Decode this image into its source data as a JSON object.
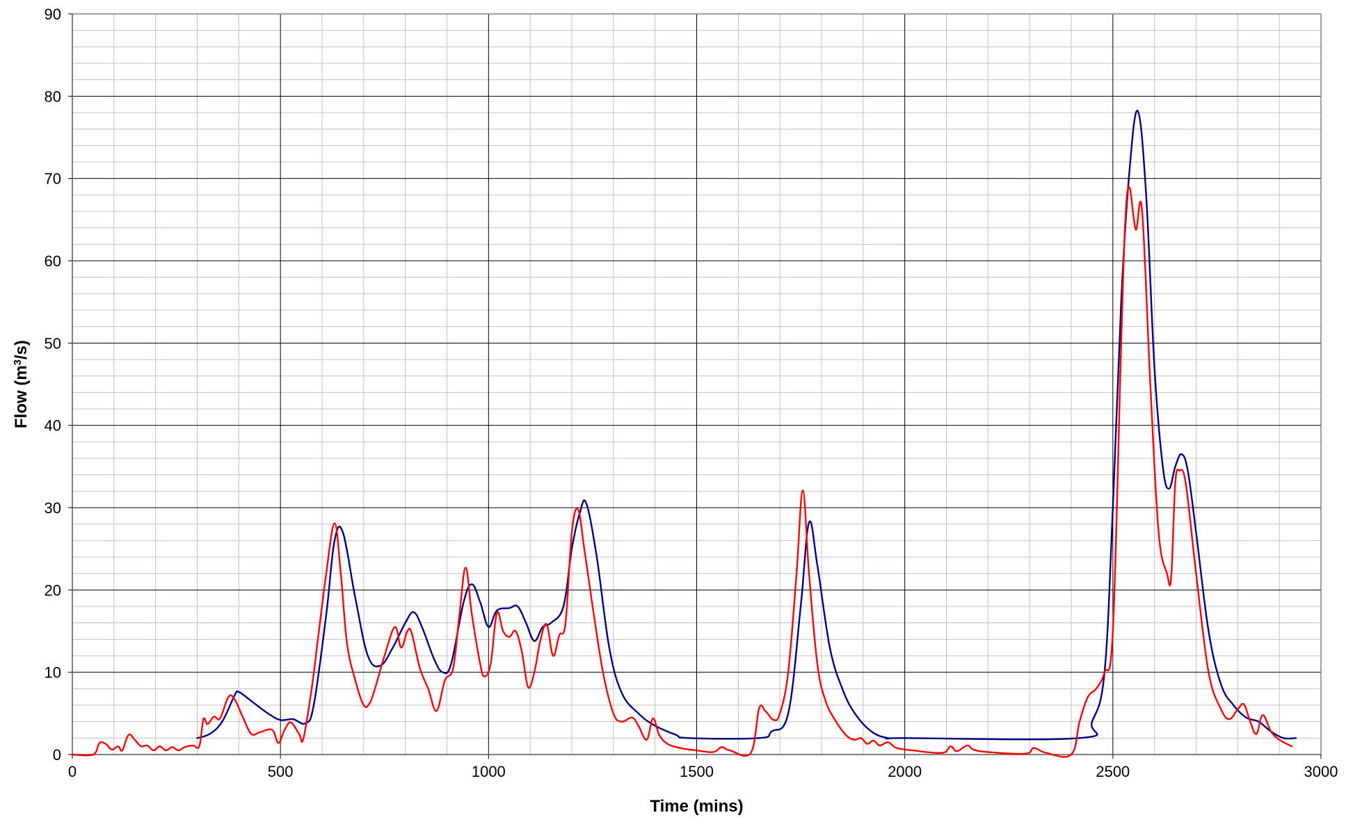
{
  "chart_data": {
    "type": "line",
    "title": "",
    "xlabel": "Time (mins)",
    "ylabel_main": "Flow (m",
    "ylabel_sup": "3",
    "ylabel_end": "/s)",
    "xlim": [
      0,
      3000
    ],
    "ylim": [
      0,
      90
    ],
    "x_major_step": 500,
    "x_minor_step": 100,
    "y_major_step": 10,
    "y_minor_step": 2,
    "grid": true,
    "x_ticks": [
      "0",
      "500",
      "1000",
      "1500",
      "2000",
      "2500",
      "3000"
    ],
    "y_ticks": [
      "0",
      "10",
      "20",
      "30",
      "40",
      "50",
      "60",
      "70",
      "80",
      "90"
    ],
    "colors": {
      "grid_major": "#000000",
      "grid_minor": "#c0c0c0",
      "series_red": "#ff0000",
      "series_blue": "#000080"
    },
    "series": [
      {
        "color": "#000080",
        "points": [
          [
            300,
            2
          ],
          [
            330,
            2.5
          ],
          [
            360,
            4
          ],
          [
            390,
            7.2
          ],
          [
            400,
            7.6
          ],
          [
            430,
            6.5
          ],
          [
            470,
            5
          ],
          [
            500,
            4.2
          ],
          [
            530,
            4.3
          ],
          [
            560,
            3.8
          ],
          [
            580,
            6
          ],
          [
            610,
            17
          ],
          [
            630,
            26
          ],
          [
            650,
            27
          ],
          [
            680,
            19
          ],
          [
            710,
            12
          ],
          [
            740,
            10.8
          ],
          [
            770,
            13
          ],
          [
            800,
            16
          ],
          [
            820,
            17.3
          ],
          [
            840,
            15.5
          ],
          [
            870,
            11.5
          ],
          [
            890,
            10
          ],
          [
            910,
            11
          ],
          [
            940,
            18.5
          ],
          [
            960,
            20.7
          ],
          [
            980,
            18.5
          ],
          [
            1000,
            15.5
          ],
          [
            1020,
            17.5
          ],
          [
            1050,
            17.8
          ],
          [
            1070,
            18
          ],
          [
            1090,
            16
          ],
          [
            1110,
            13.8
          ],
          [
            1130,
            15.5
          ],
          [
            1150,
            16
          ],
          [
            1180,
            18
          ],
          [
            1200,
            25
          ],
          [
            1220,
            29.5
          ],
          [
            1235,
            30.5
          ],
          [
            1260,
            24
          ],
          [
            1290,
            13
          ],
          [
            1320,
            7.5
          ],
          [
            1360,
            5
          ],
          [
            1400,
            3.5
          ],
          [
            1450,
            2.4
          ],
          [
            1480,
            2
          ],
          [
            1650,
            2
          ],
          [
            1680,
            2.8
          ],
          [
            1720,
            5
          ],
          [
            1750,
            18
          ],
          [
            1770,
            28.2
          ],
          [
            1790,
            23
          ],
          [
            1820,
            13
          ],
          [
            1850,
            8
          ],
          [
            1880,
            5
          ],
          [
            1920,
            2.8
          ],
          [
            1960,
            2
          ],
          [
            2000,
            2
          ],
          [
            2420,
            2
          ],
          [
            2450,
            4
          ],
          [
            2480,
            10
          ],
          [
            2500,
            30
          ],
          [
            2520,
            55
          ],
          [
            2540,
            71
          ],
          [
            2560,
            78.2
          ],
          [
            2580,
            68
          ],
          [
            2600,
            47
          ],
          [
            2620,
            35
          ],
          [
            2635,
            32.3
          ],
          [
            2650,
            35
          ],
          [
            2665,
            36.5
          ],
          [
            2680,
            34.5
          ],
          [
            2700,
            27
          ],
          [
            2730,
            15
          ],
          [
            2760,
            8.5
          ],
          [
            2790,
            6
          ],
          [
            2820,
            4.5
          ],
          [
            2850,
            4
          ],
          [
            2880,
            2.8
          ],
          [
            2910,
            2
          ],
          [
            2940,
            2
          ]
        ]
      },
      {
        "color": "#ff0000",
        "points": [
          [
            0,
            0
          ],
          [
            50,
            0
          ],
          [
            65,
            1.4
          ],
          [
            80,
            1.3
          ],
          [
            95,
            0.6
          ],
          [
            110,
            1
          ],
          [
            120,
            0.5
          ],
          [
            135,
            2.4
          ],
          [
            150,
            1.8
          ],
          [
            165,
            1
          ],
          [
            180,
            1.1
          ],
          [
            195,
            0.5
          ],
          [
            210,
            1
          ],
          [
            225,
            0.5
          ],
          [
            240,
            0.9
          ],
          [
            255,
            0.5
          ],
          [
            270,
            0.9
          ],
          [
            290,
            1.1
          ],
          [
            305,
            1
          ],
          [
            315,
            4.3
          ],
          [
            325,
            3.7
          ],
          [
            340,
            4.6
          ],
          [
            355,
            4.4
          ],
          [
            375,
            7
          ],
          [
            390,
            6.7
          ],
          [
            410,
            4.5
          ],
          [
            430,
            2.5
          ],
          [
            450,
            2.7
          ],
          [
            480,
            3
          ],
          [
            495,
            1.4
          ],
          [
            510,
            3
          ],
          [
            525,
            3.9
          ],
          [
            545,
            2.5
          ],
          [
            555,
            1.9
          ],
          [
            575,
            8
          ],
          [
            590,
            14
          ],
          [
            610,
            22
          ],
          [
            630,
            28.1
          ],
          [
            645,
            22
          ],
          [
            660,
            13.5
          ],
          [
            680,
            9
          ],
          [
            700,
            6
          ],
          [
            715,
            6.3
          ],
          [
            730,
            8.5
          ],
          [
            750,
            12
          ],
          [
            775,
            15.5
          ],
          [
            790,
            13
          ],
          [
            805,
            15
          ],
          [
            815,
            14.8
          ],
          [
            835,
            10.5
          ],
          [
            855,
            8
          ],
          [
            875,
            5.3
          ],
          [
            895,
            9
          ],
          [
            915,
            10.5
          ],
          [
            930,
            17
          ],
          [
            945,
            22.7
          ],
          [
            960,
            17
          ],
          [
            980,
            11
          ],
          [
            990,
            9.5
          ],
          [
            1005,
            11
          ],
          [
            1020,
            17.2
          ],
          [
            1035,
            15
          ],
          [
            1050,
            14.3
          ],
          [
            1065,
            15
          ],
          [
            1080,
            12.5
          ],
          [
            1095,
            8.2
          ],
          [
            1110,
            10
          ],
          [
            1125,
            14
          ],
          [
            1140,
            15.8
          ],
          [
            1155,
            12
          ],
          [
            1170,
            14.5
          ],
          [
            1185,
            16
          ],
          [
            1200,
            27
          ],
          [
            1215,
            29.8
          ],
          [
            1230,
            25
          ],
          [
            1250,
            18
          ],
          [
            1275,
            10
          ],
          [
            1300,
            5
          ],
          [
            1320,
            4
          ],
          [
            1345,
            4.5
          ],
          [
            1360,
            3.5
          ],
          [
            1380,
            1.8
          ],
          [
            1395,
            4.4
          ],
          [
            1410,
            2.4
          ],
          [
            1430,
            1.3
          ],
          [
            1460,
            0.8
          ],
          [
            1500,
            0.5
          ],
          [
            1540,
            0.3
          ],
          [
            1560,
            0.9
          ],
          [
            1580,
            0.5
          ],
          [
            1630,
            0.2
          ],
          [
            1650,
            5.6
          ],
          [
            1665,
            5.3
          ],
          [
            1685,
            4.2
          ],
          [
            1700,
            5
          ],
          [
            1720,
            10
          ],
          [
            1740,
            22
          ],
          [
            1755,
            32.1
          ],
          [
            1770,
            22
          ],
          [
            1790,
            11
          ],
          [
            1810,
            6.5
          ],
          [
            1835,
            4
          ],
          [
            1860,
            2.3
          ],
          [
            1880,
            1.8
          ],
          [
            1895,
            2
          ],
          [
            1910,
            1.3
          ],
          [
            1925,
            1.7
          ],
          [
            1940,
            1.1
          ],
          [
            1960,
            1.5
          ],
          [
            1980,
            0.8
          ],
          [
            2020,
            0.5
          ],
          [
            2090,
            0.2
          ],
          [
            2110,
            1
          ],
          [
            2125,
            0.4
          ],
          [
            2150,
            1.1
          ],
          [
            2165,
            0.6
          ],
          [
            2200,
            0.3
          ],
          [
            2290,
            0.1
          ],
          [
            2310,
            0.8
          ],
          [
            2340,
            0.2
          ],
          [
            2400,
            0
          ],
          [
            2420,
            4
          ],
          [
            2440,
            7
          ],
          [
            2460,
            8
          ],
          [
            2480,
            10
          ],
          [
            2500,
            15
          ],
          [
            2520,
            50
          ],
          [
            2530,
            65
          ],
          [
            2540,
            68.9
          ],
          [
            2555,
            63.8
          ],
          [
            2570,
            66.2
          ],
          [
            2590,
            45
          ],
          [
            2610,
            27
          ],
          [
            2630,
            22
          ],
          [
            2640,
            21.5
          ],
          [
            2650,
            33
          ],
          [
            2660,
            34.5
          ],
          [
            2675,
            33
          ],
          [
            2700,
            22
          ],
          [
            2730,
            10
          ],
          [
            2760,
            5.5
          ],
          [
            2780,
            4.3
          ],
          [
            2800,
            5.5
          ],
          [
            2815,
            6.1
          ],
          [
            2830,
            4
          ],
          [
            2845,
            2.5
          ],
          [
            2860,
            4.8
          ],
          [
            2880,
            2.8
          ],
          [
            2900,
            1.8
          ],
          [
            2930,
            1
          ]
        ]
      }
    ]
  }
}
